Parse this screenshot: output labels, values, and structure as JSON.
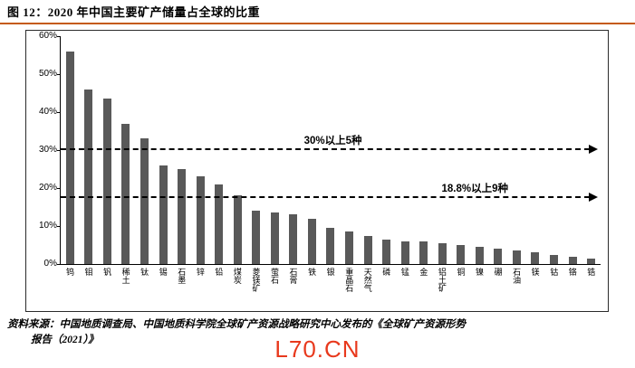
{
  "figure": {
    "title": "图 12：2020 年中国主要矿产储量占全球的比重",
    "source_line1": "资料来源：中国地质调查局、中国地质科学院全球矿产资源战略研究中心发布的《全球矿产资源形势",
    "source_line2": "报告（2021）》",
    "watermark": "L70.CN",
    "accent_color": "#c55a11",
    "bar_color": "#595959",
    "watermark_color": "#e8391d"
  },
  "chart_data": {
    "type": "bar",
    "title": "2020 年中国主要矿产储量占全球的比重",
    "categories": [
      "钨",
      "钼",
      "钒",
      "稀土",
      "钛",
      "锡",
      "石墨",
      "锌",
      "铅",
      "煤炭",
      "菱镁矿",
      "萤石",
      "石膏",
      "铁",
      "银",
      "重晶石",
      "天然气",
      "磷",
      "锰",
      "金",
      "铝土矿",
      "铜",
      "镍",
      "硼",
      "石油",
      "镁",
      "钴",
      "铬",
      "锆"
    ],
    "values": [
      56,
      46,
      43.5,
      37,
      33,
      26,
      25,
      23,
      21,
      18,
      14,
      13.5,
      13,
      12,
      9.5,
      8.5,
      7.5,
      6.5,
      6,
      6,
      5.5,
      5,
      4.5,
      4,
      3.5,
      3,
      2.5,
      2,
      1.5
    ],
    "xlabel": "",
    "ylabel": "",
    "ylim": [
      0,
      60
    ],
    "ytick_labels": [
      "0%",
      "10%",
      "20%",
      "30%",
      "40%",
      "50%",
      "60%"
    ],
    "grid": false,
    "legend": false,
    "annotations": [
      {
        "label": "30%以上5种",
        "y": 30,
        "label_left_pct": 46
      },
      {
        "label": "18.8%以上9种",
        "y": 17.5,
        "label_left_pct": 72
      }
    ]
  }
}
